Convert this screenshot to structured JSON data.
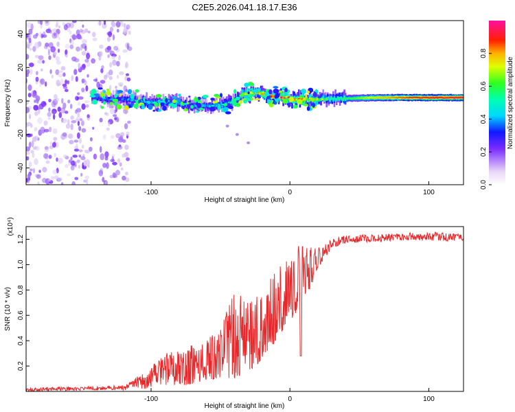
{
  "title": "C2E5.2026.041.18.17.E36",
  "chart_data": [
    {
      "type": "heatmap",
      "name": "spectrogram",
      "xlabel": "Height of straight line (km)",
      "ylabel": "Frequency (Hz)",
      "xlim": [
        -190,
        125
      ],
      "ylim": [
        -50,
        48
      ],
      "xticks": [
        -100,
        0,
        100
      ],
      "yticks": [
        -40,
        -20,
        0,
        20,
        40
      ],
      "colorbar": {
        "label": "Normalized spectral amplitude",
        "range": [
          0,
          1
        ],
        "ticks": [
          0.0,
          0.2,
          0.4,
          0.6,
          0.8
        ],
        "tick_labels": [
          "0.0",
          "0.2",
          "0.4",
          "0.6",
          "0.8"
        ]
      },
      "features": {
        "noise_region_x": [
          -190,
          -115
        ],
        "signal_start_x": -143,
        "signal_line_freq": 2,
        "tail_points": [
          {
            "x": -45,
            "y": -15
          },
          {
            "x": -38,
            "y": -20
          },
          {
            "x": -30,
            "y": -25
          }
        ]
      },
      "signal_track": [
        {
          "x": -143,
          "y": 2
        },
        {
          "x": -130,
          "y": 1
        },
        {
          "x": -118,
          "y": 1
        },
        {
          "x": -100,
          "y": -1
        },
        {
          "x": -85,
          "y": 0
        },
        {
          "x": -70,
          "y": -3
        },
        {
          "x": -60,
          "y": -3
        },
        {
          "x": -45,
          "y": -2
        },
        {
          "x": -35,
          "y": 4
        },
        {
          "x": -25,
          "y": 5
        },
        {
          "x": -15,
          "y": 3
        },
        {
          "x": 0,
          "y": 1
        },
        {
          "x": 20,
          "y": 1
        },
        {
          "x": 60,
          "y": 2
        },
        {
          "x": 125,
          "y": 2
        }
      ],
      "signal_amplitude": [
        {
          "x": -143,
          "a": 0.3
        },
        {
          "x": -120,
          "a": 0.35
        },
        {
          "x": -100,
          "a": 0.45
        },
        {
          "x": -80,
          "a": 0.45
        },
        {
          "x": -60,
          "a": 0.4
        },
        {
          "x": -40,
          "a": 0.55
        },
        {
          "x": -20,
          "a": 0.75
        },
        {
          "x": 0,
          "a": 0.85
        },
        {
          "x": 30,
          "a": 0.5
        },
        {
          "x": 60,
          "a": 0.75
        },
        {
          "x": 90,
          "a": 0.9
        },
        {
          "x": 125,
          "a": 0.95
        }
      ]
    },
    {
      "type": "line",
      "name": "snr",
      "xlabel": "Height of straight line (km)",
      "ylabel": "SNR (10 * v/v)",
      "scale_label": "(x10⁴)",
      "xlim": [
        -190,
        125
      ],
      "ylim": [
        0,
        1.3
      ],
      "xticks": [
        -100,
        0,
        100
      ],
      "yticks": [
        0.2,
        0.4,
        0.6,
        0.8,
        1.0,
        1.2
      ],
      "ytick_labels": [
        "0.2",
        "0.4",
        "0.6",
        "0.8",
        "1.0",
        "1.2"
      ],
      "color": "#e8282a",
      "envelope": [
        {
          "x": -190,
          "lo": 0.0,
          "hi": 0.03
        },
        {
          "x": -140,
          "lo": 0.01,
          "hi": 0.04
        },
        {
          "x": -120,
          "lo": 0.01,
          "hi": 0.05
        },
        {
          "x": -105,
          "lo": 0.02,
          "hi": 0.15
        },
        {
          "x": -90,
          "lo": 0.05,
          "hi": 0.3
        },
        {
          "x": -75,
          "lo": 0.05,
          "hi": 0.35
        },
        {
          "x": -60,
          "lo": 0.08,
          "hi": 0.4
        },
        {
          "x": -50,
          "lo": 0.1,
          "hi": 0.55
        },
        {
          "x": -40,
          "lo": 0.1,
          "hi": 0.8
        },
        {
          "x": -30,
          "lo": 0.15,
          "hi": 0.7
        },
        {
          "x": -20,
          "lo": 0.25,
          "hi": 0.8
        },
        {
          "x": -10,
          "lo": 0.4,
          "hi": 0.95
        },
        {
          "x": 0,
          "lo": 0.55,
          "hi": 1.15
        },
        {
          "x": 10,
          "lo": 0.7,
          "hi": 1.15
        },
        {
          "x": 20,
          "lo": 0.95,
          "hi": 1.15
        },
        {
          "x": 30,
          "lo": 1.13,
          "hi": 1.2
        },
        {
          "x": 40,
          "lo": 1.17,
          "hi": 1.23
        },
        {
          "x": 60,
          "lo": 1.18,
          "hi": 1.24
        },
        {
          "x": 80,
          "lo": 1.19,
          "hi": 1.25
        },
        {
          "x": 100,
          "lo": 1.19,
          "hi": 1.26
        },
        {
          "x": 125,
          "lo": 1.18,
          "hi": 1.24
        }
      ],
      "dip": {
        "x": 8,
        "y": 0.28
      }
    }
  ]
}
